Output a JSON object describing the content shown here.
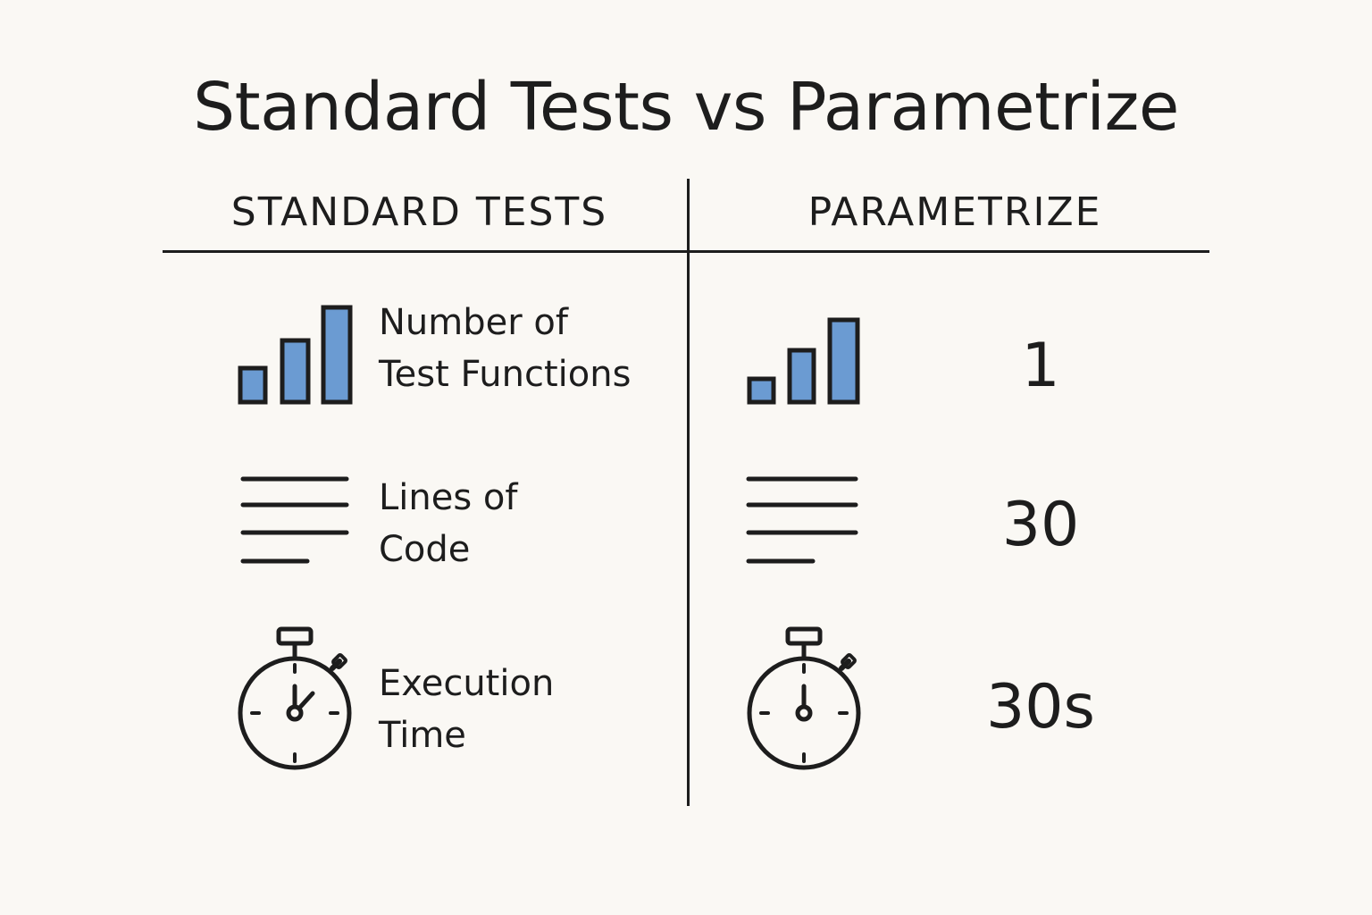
{
  "title": "Standard Tests vs Parametrize",
  "columns": {
    "left_header": "STANDARD TESTS",
    "right_header": "PARAMETRIZE"
  },
  "rows": [
    {
      "icon": "bar-chart-icon",
      "label_line1": "Number of",
      "label_line2": "Test Functions",
      "value": "1"
    },
    {
      "icon": "lines-of-code-icon",
      "label_line1": "Lines of",
      "label_line2": "Code",
      "value": "30"
    },
    {
      "icon": "stopwatch-icon",
      "label_line1": "Execution",
      "label_line2": "Time",
      "value": "30s"
    }
  ],
  "colors": {
    "accent": "#6b9bd2",
    "ink": "#1d1d1d",
    "background": "#faf8f4"
  }
}
